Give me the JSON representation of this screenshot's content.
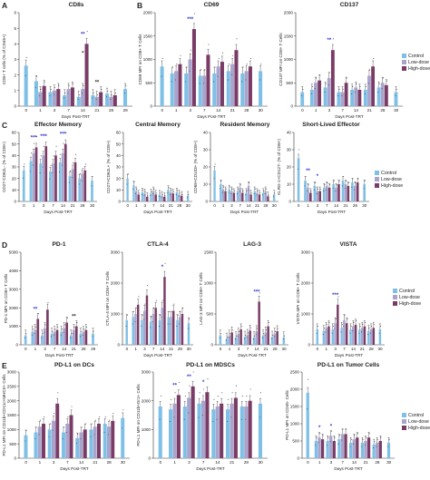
{
  "colors": {
    "control": "#7ec0e6",
    "low": "#a9a4cc",
    "high": "#7a3c66"
  },
  "legend": [
    "Control",
    "Low-dose",
    "High-dose"
  ],
  "chart_data": [
    {
      "id": "cd8s",
      "label": "A",
      "title": "CD8s",
      "type": "bar",
      "xlabel": "Days Post-TRT",
      "ylabel": "CD8+ T cells (% of CD45+)",
      "categories": [
        "0",
        "1",
        "3",
        "7",
        "14",
        "21",
        "28",
        "29"
      ],
      "ylim": [
        0,
        6
      ],
      "yticks": [
        0,
        1,
        2,
        3,
        4,
        5,
        6
      ],
      "series": [
        {
          "values": [
            2.6,
            1.6,
            0.9,
            0.7,
            0.6,
            0.7,
            0.8,
            1.1
          ]
        },
        {
          "values": [
            null,
            0.9,
            1.0,
            1.1,
            1.1,
            0.6,
            0.6,
            null
          ]
        },
        {
          "values": [
            null,
            1.3,
            1.1,
            1.2,
            4.0,
            0.9,
            0.7,
            null
          ]
        }
      ],
      "annotations": [
        {
          "cat": "14",
          "text": "**",
          "color": "#2e3bcf"
        },
        {
          "cat": "14",
          "text": "*",
          "color": "#333333",
          "low": true
        },
        {
          "cat": "21",
          "text": "**",
          "color": "#333333"
        }
      ]
    },
    {
      "id": "cd69",
      "label": "B",
      "title": "CD69",
      "type": "bar",
      "xlabel": "Days Post-TRT",
      "ylabel": "CD69 MFI on CD8+ T Cells",
      "categories": [
        "0",
        "1",
        "3",
        "7",
        "14",
        "21",
        "28",
        "30"
      ],
      "ylim": [
        0,
        2000
      ],
      "yticks": [
        0,
        500,
        1000,
        1500,
        2000
      ],
      "series": [
        {
          "values": [
            850,
            700,
            700,
            650,
            700,
            750,
            700,
            750
          ]
        },
        {
          "values": [
            null,
            750,
            1000,
            650,
            850,
            900,
            750,
            null
          ]
        },
        {
          "values": [
            null,
            900,
            1650,
            1100,
            950,
            1200,
            850,
            null
          ]
        }
      ],
      "annotations": [
        {
          "cat": "3",
          "text": "***",
          "color": "#2e3bcf"
        }
      ]
    },
    {
      "id": "cd137",
      "label": "",
      "title": "CD137",
      "type": "bar",
      "xlabel": "Days Post-TRT",
      "ylabel": "CD137 MFI on CD8+ T Cells",
      "categories": [
        "0",
        "1",
        "3",
        "7",
        "14",
        "21",
        "28",
        "30"
      ],
      "ylim": [
        0,
        2000
      ],
      "yticks": [
        0,
        500,
        1000,
        1500,
        2000
      ],
      "series": [
        {
          "values": [
            300,
            350,
            400,
            300,
            350,
            350,
            400,
            300
          ]
        },
        {
          "values": [
            null,
            500,
            600,
            300,
            400,
            650,
            500,
            null
          ]
        },
        {
          "values": [
            null,
            550,
            1200,
            500,
            350,
            850,
            450,
            null
          ]
        }
      ],
      "annotations": [
        {
          "cat": "3",
          "text": "**",
          "color": "#2e3bcf"
        }
      ]
    },
    {
      "id": "effmem",
      "label": "C",
      "title": "Effector Memory",
      "type": "bar",
      "xlabel": "Days Post-TRT",
      "ylabel": "CD27-CD62L- (% of CD8+)",
      "categories": [
        "0",
        "1",
        "3",
        "7",
        "14",
        "21",
        "28",
        "30"
      ],
      "ylim": [
        0,
        60
      ],
      "yticks": [
        0,
        10,
        20,
        30,
        40,
        50,
        60
      ],
      "series": [
        {
          "values": [
            27,
            35,
            33,
            26,
            34,
            22,
            20,
            18
          ]
        },
        {
          "values": [
            null,
            42,
            40,
            33,
            42,
            28,
            24,
            null
          ]
        },
        {
          "values": [
            null,
            47,
            48,
            40,
            50,
            34,
            27,
            null
          ]
        }
      ],
      "annotations": [
        {
          "cat": "1",
          "text": "***",
          "color": "#2e3bcf"
        },
        {
          "cat": "3",
          "text": "***",
          "color": "#2e3bcf"
        },
        {
          "cat": "14",
          "text": "***",
          "color": "#2e3bcf"
        }
      ]
    },
    {
      "id": "cenmem",
      "label": "",
      "title": "Central Memory",
      "type": "bar",
      "xlabel": "Days Post-TRT",
      "ylabel": "CD27+CD62L+ (% of CD8+)",
      "categories": [
        "0",
        "1",
        "3",
        "7",
        "14",
        "21",
        "28",
        "30"
      ],
      "ylim": [
        0,
        60
      ],
      "yticks": [
        0,
        10,
        20,
        30,
        40,
        50,
        60
      ],
      "series": [
        {
          "values": [
            20,
            14,
            8,
            7,
            6,
            10,
            8,
            5
          ]
        },
        {
          "values": [
            null,
            9,
            7,
            9,
            5,
            8,
            6,
            null
          ]
        },
        {
          "values": [
            null,
            6,
            4,
            6,
            4,
            7,
            5,
            null
          ]
        }
      ],
      "annotations": []
    },
    {
      "id": "resmem",
      "label": "",
      "title": "Resident Memory",
      "type": "bar",
      "xlabel": "Days Post-TRT",
      "ylabel": "CD69+CD103+ (% of CD8+)",
      "categories": [
        "0",
        "1",
        "3",
        "7",
        "14",
        "21",
        "28",
        "30"
      ],
      "ylim": [
        0,
        40
      ],
      "yticks": [
        0,
        10,
        20,
        30,
        40
      ],
      "series": [
        {
          "values": [
            18,
            10,
            7,
            6,
            5,
            6,
            5,
            4
          ]
        },
        {
          "values": [
            null,
            7,
            6,
            8,
            9,
            5,
            6,
            null
          ]
        },
        {
          "values": [
            null,
            6,
            5,
            5,
            4,
            4,
            3,
            null
          ]
        }
      ],
      "annotations": []
    },
    {
      "id": "slec",
      "label": "",
      "title": "Short-Lived Effector",
      "type": "bar",
      "xlabel": "Days Post-TRT",
      "ylabel": "KLRG-1+CD127- (% of CD8+)",
      "categories": [
        "0",
        "1",
        "3",
        "7",
        "14",
        "21",
        "28",
        "30"
      ],
      "ylim": [
        0,
        40
      ],
      "yticks": [
        0,
        10,
        20,
        30,
        40
      ],
      "series": [
        {
          "values": [
            25,
            12,
            9,
            8,
            10,
            12,
            11,
            10
          ]
        },
        {
          "values": [
            null,
            8,
            6,
            9,
            8,
            10,
            9,
            null
          ]
        },
        {
          "values": [
            null,
            5,
            6,
            8,
            10,
            9,
            11,
            null
          ]
        }
      ],
      "annotations": [
        {
          "cat": "1",
          "text": "**",
          "color": "#2e3bcf"
        },
        {
          "cat": "3",
          "text": "*",
          "color": "#2e3bcf"
        }
      ]
    },
    {
      "id": "pd1",
      "label": "D",
      "title": "PD-1",
      "type": "bar",
      "xlabel": "Days Post-TRT",
      "ylabel": "PD-1 MFI on CD8+ T Cells",
      "categories": [
        "0",
        "1",
        "3",
        "7",
        "14",
        "21",
        "28",
        "29"
      ],
      "ylim": [
        0,
        5000
      ],
      "yticks": [
        0,
        1000,
        2000,
        3000,
        4000,
        5000
      ],
      "series": [
        {
          "values": [
            500,
            700,
            500,
            600,
            700,
            500,
            600,
            600
          ]
        },
        {
          "values": [
            null,
            800,
            900,
            700,
            900,
            800,
            700,
            null
          ]
        },
        {
          "values": [
            null,
            1400,
            1900,
            800,
            1200,
            1000,
            800,
            null
          ]
        }
      ],
      "annotations": [
        {
          "cat": "1",
          "text": "**",
          "color": "#2e3bcf"
        },
        {
          "cat": "21",
          "text": "**",
          "color": "#333333"
        }
      ]
    },
    {
      "id": "ctla4",
      "label": "",
      "title": "CTLA-4",
      "type": "bar",
      "xlabel": "Days Post-TRT",
      "ylabel": "CTLA-4 MFI on CD8+ T Cells",
      "categories": [
        "0",
        "1",
        "3",
        "7",
        "14",
        "21",
        "28",
        "30"
      ],
      "ylim": [
        0,
        3000
      ],
      "yticks": [
        0,
        1000,
        2000,
        3000
      ],
      "series": [
        {
          "values": [
            800,
            900,
            800,
            750,
            800,
            900,
            800,
            700
          ]
        },
        {
          "values": [
            null,
            1000,
            1100,
            1000,
            1200,
            900,
            900,
            null
          ]
        },
        {
          "values": [
            null,
            1300,
            1600,
            1200,
            2200,
            1100,
            1000,
            null
          ]
        }
      ],
      "annotations": [
        {
          "cat": "14",
          "text": "*",
          "color": "#2e3bcf"
        }
      ]
    },
    {
      "id": "lag3",
      "label": "",
      "title": "LAG-3",
      "type": "bar",
      "xlabel": "Days Post-TRT",
      "ylabel": "LAG-3 MFI on CD8+ T Cells",
      "categories": [
        "0",
        "1",
        "3",
        "7",
        "14",
        "21",
        "28",
        "30"
      ],
      "ylim": [
        0,
        1500
      ],
      "yticks": [
        0,
        500,
        1000,
        1500
      ],
      "series": [
        {
          "values": [
            150,
            100,
            120,
            130,
            120,
            150,
            130,
            120
          ]
        },
        {
          "values": [
            null,
            150,
            180,
            160,
            220,
            200,
            180,
            null
          ]
        },
        {
          "values": [
            null,
            200,
            250,
            230,
            700,
            300,
            220,
            null
          ]
        }
      ],
      "annotations": [
        {
          "cat": "14",
          "text": "***",
          "color": "#2e3bcf"
        }
      ]
    },
    {
      "id": "vista",
      "label": "",
      "title": "VISTA",
      "type": "bar",
      "xlabel": "Days Post-TRT",
      "ylabel": "VISTA MFI on CD8+ T Cells",
      "categories": [
        "0",
        "1",
        "3",
        "7",
        "14",
        "21",
        "28",
        "30"
      ],
      "ylim": [
        0,
        3000
      ],
      "yticks": [
        0,
        1000,
        2000,
        3000
      ],
      "series": [
        {
          "values": [
            500,
            450,
            500,
            550,
            500,
            500,
            450,
            500
          ]
        },
        {
          "values": [
            null,
            550,
            700,
            800,
            600,
            550,
            500,
            null
          ]
        },
        {
          "values": [
            null,
            600,
            1300,
            700,
            650,
            600,
            550,
            null
          ]
        }
      ],
      "annotations": [
        {
          "cat": "3",
          "text": "***",
          "color": "#2e3bcf"
        }
      ]
    },
    {
      "id": "pdl1dc",
      "label": "E",
      "title": "PD-L1 on DCs",
      "type": "bar",
      "xlabel": "Days Post-TRT",
      "ylabel": "PD-L1 MFI on CD11b+CD11c+MHCII+ Cells",
      "categories": [
        "0",
        "1",
        "3",
        "7",
        "14",
        "21",
        "28",
        "30"
      ],
      "ylim": [
        0,
        3000
      ],
      "yticks": [
        0,
        500,
        1000,
        1500,
        2000,
        2500,
        3000
      ],
      "series": [
        {
          "values": [
            800,
            900,
            1000,
            900,
            700,
            1000,
            1200,
            1400
          ]
        },
        {
          "values": [
            null,
            1100,
            1300,
            1200,
            900,
            1100,
            1100,
            null
          ]
        },
        {
          "values": [
            null,
            1200,
            1900,
            1500,
            1000,
            1200,
            1300,
            null
          ]
        }
      ],
      "annotations": []
    },
    {
      "id": "pdl1mdsc",
      "label": "",
      "title": "PD-L1 on MDSCs",
      "type": "bar",
      "xlabel": "Days Post-TRT",
      "ylabel": "PD-L1 MFI on CD11b+Gr1+ Cells",
      "categories": [
        "0",
        "1",
        "3",
        "7",
        "14",
        "21",
        "28",
        "30"
      ],
      "ylim": [
        0,
        3000
      ],
      "yticks": [
        0,
        1000,
        2000,
        3000
      ],
      "series": [
        {
          "values": [
            1800,
            1700,
            1800,
            1900,
            1700,
            1700,
            1800,
            1900
          ]
        },
        {
          "values": [
            null,
            1900,
            2100,
            2000,
            1800,
            1900,
            1800,
            null
          ]
        },
        {
          "values": [
            null,
            2200,
            2500,
            2300,
            1900,
            2100,
            2000,
            null
          ]
        }
      ],
      "annotations": [
        {
          "cat": "1",
          "text": "**",
          "color": "#2e3bcf"
        },
        {
          "cat": "3",
          "text": "**",
          "color": "#2e3bcf"
        },
        {
          "cat": "7",
          "text": "*",
          "color": "#2e3bcf"
        }
      ]
    },
    {
      "id": "pdl1tumor",
      "label": "",
      "title": "PD-L1 on Tumor Cells",
      "type": "bar",
      "xlabel": "Days Post-TRT",
      "ylabel": "PD-L1 MFI on CD45- Cells",
      "categories": [
        "0",
        "1",
        "3",
        "7",
        "14",
        "21",
        "28",
        "30"
      ],
      "ylim": [
        0,
        2500
      ],
      "yticks": [
        0,
        500,
        1000,
        1500,
        2000,
        2500
      ],
      "series": [
        {
          "values": [
            1900,
            500,
            500,
            550,
            450,
            450,
            400,
            450
          ]
        },
        {
          "values": [
            null,
            600,
            650,
            700,
            550,
            500,
            450,
            null
          ]
        },
        {
          "values": [
            null,
            550,
            500,
            700,
            600,
            600,
            500,
            null
          ]
        }
      ],
      "annotations": [
        {
          "cat": "1",
          "text": "*",
          "color": "#2e3bcf"
        },
        {
          "cat": "3",
          "text": "*",
          "color": "#2e3bcf"
        }
      ]
    }
  ]
}
